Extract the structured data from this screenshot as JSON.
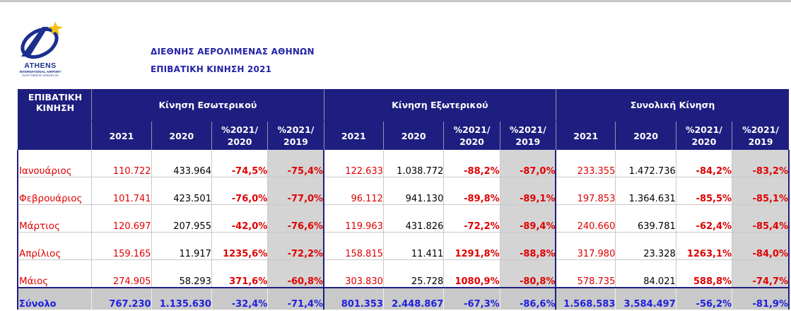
{
  "header": {
    "logo_name": "ATHENS",
    "logo_sub": "INTERNATIONAL AIRPORT",
    "logo_sub2": "ELEFTHERIOS VENIZELOS",
    "title_line1": "ΔΙΕΘΝΗΣ ΑΕΡΟΛΙΜΕΝΑΣ ΑΘΗΝΩΝ",
    "title_line2": "ΕΠΙΒΑΤΙΚΗ ΚΙΝΗΣΗ 2021"
  },
  "table": {
    "corner_label_1": "ΕΠΙΒΑΤΙΚΗ",
    "corner_label_2": "ΚΙΝΗΣΗ",
    "groups": [
      "Κίνηση Εσωτερικού",
      "Κίνηση Εξωτερικού",
      "Συνολική Κίνηση"
    ],
    "columns": [
      {
        "l1": "2021",
        "l2": ""
      },
      {
        "l1": "2020",
        "l2": ""
      },
      {
        "l1": "%2021/",
        "l2": "2020"
      },
      {
        "l1": "%2021/",
        "l2": "2019"
      }
    ],
    "rows": [
      {
        "month": "Ιανουάριος",
        "cells": [
          "110.722",
          "433.964",
          "-74,5%",
          "-75,4%",
          "122.633",
          "1.038.772",
          "-88,2%",
          "-87,0%",
          "233.355",
          "1.472.736",
          "-84,2%",
          "-83,2%"
        ]
      },
      {
        "month": "Φεβρουάριος",
        "cells": [
          "101.741",
          "423.501",
          "-76,0%",
          "-77,0%",
          "96.112",
          "941.130",
          "-89,8%",
          "-89,1%",
          "197.853",
          "1.364.631",
          "-85,5%",
          "-85,1%"
        ]
      },
      {
        "month": "Μάρτιος",
        "cells": [
          "120.697",
          "207.955",
          "-42,0%",
          "-76,6%",
          "119.963",
          "431.826",
          "-72,2%",
          "-89,4%",
          "240.660",
          "639.781",
          "-62,4%",
          "-85,4%"
        ]
      },
      {
        "month": "Απρίλιος",
        "cells": [
          "159.165",
          "11.917",
          "1235,6%",
          "-72,2%",
          "158.815",
          "11.411",
          "1291,8%",
          "-88,8%",
          "317.980",
          "23.328",
          "1263,1%",
          "-84,0%"
        ]
      },
      {
        "month": "Μάιος",
        "cells": [
          "274.905",
          "58.293",
          "371,6%",
          "-60,8%",
          "303.830",
          "25.728",
          "1080,9%",
          "-80,8%",
          "578.735",
          "84.021",
          "588,8%",
          "-74,7%"
        ]
      }
    ],
    "total": {
      "label": "Σύνολο",
      "cells": [
        "767.230",
        "1.135.630",
        "-32,4%",
        "-71,4%",
        "801.353",
        "2.448.867",
        "-67,3%",
        "-86,6%",
        "1.568.583",
        "3.584.497",
        "-56,2%",
        "-81,9%"
      ]
    }
  },
  "colors": {
    "header_bg": "#1e1e80",
    "heading_text": "#2323a8",
    "negative_red": "#e00000",
    "total_text": "#2020e0",
    "shade": "#d4d4d4"
  }
}
